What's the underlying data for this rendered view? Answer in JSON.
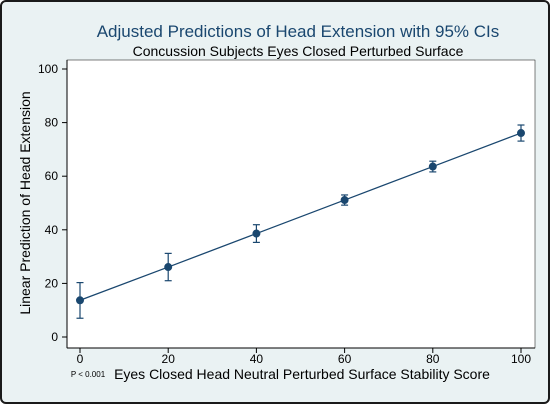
{
  "chart_data": {
    "type": "scatter",
    "title": "Adjusted Predictions of Head Extension with 95% CIs",
    "subtitle": "Concussion Subjects Eyes Closed Perturbed Surface",
    "xlabel": "Eyes Closed Head Neutral Perturbed Surface Stability Score",
    "ylabel": "Linear Prediction of Head Extension",
    "annotation": "P < 0.001",
    "xlim": [
      0,
      100
    ],
    "ylim": [
      0,
      100
    ],
    "x_ticks": [
      "0",
      "20",
      "40",
      "60",
      "80",
      "100"
    ],
    "y_ticks": [
      "0",
      "20",
      "40",
      "60",
      "80",
      "100"
    ],
    "grid": false,
    "connect_points": true,
    "colors": {
      "series": "#1a476f",
      "background": "#eaf2f3",
      "plot_background": "#ffffff",
      "title": "#1a476f"
    },
    "x": [
      0,
      20,
      40,
      60,
      80,
      100
    ],
    "values": [
      13.7,
      26.1,
      38.6,
      51.1,
      63.6,
      76.1
    ],
    "ci_low": [
      7.0,
      21.0,
      35.3,
      49.2,
      61.6,
      73.1
    ],
    "ci_high": [
      20.3,
      31.2,
      41.9,
      53.0,
      65.6,
      79.1
    ]
  }
}
